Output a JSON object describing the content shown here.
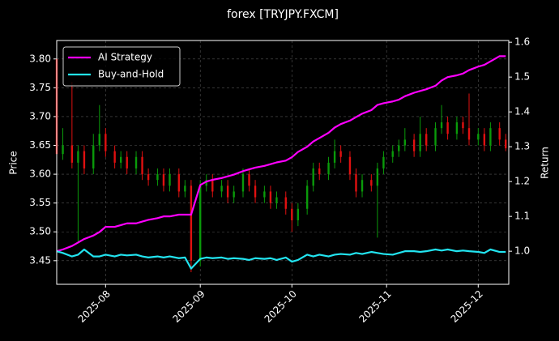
{
  "chart_data": {
    "type": "candlestick",
    "title": "forex [TRYJPY.FXCM]",
    "ylabel": "Price",
    "y2label": "Return",
    "x": [
      "2025-07-16",
      "2025-07-18",
      "2025-07-21",
      "2025-07-23",
      "2025-07-25",
      "2025-07-28",
      "2025-07-30",
      "2025-08-01",
      "2025-08-04",
      "2025-08-06",
      "2025-08-08",
      "2025-08-11",
      "2025-08-13",
      "2025-08-15",
      "2025-08-18",
      "2025-08-20",
      "2025-08-22",
      "2025-08-25",
      "2025-08-27",
      "2025-08-29",
      "2025-09-01",
      "2025-09-03",
      "2025-09-05",
      "2025-09-08",
      "2025-09-10",
      "2025-09-12",
      "2025-09-15",
      "2025-09-17",
      "2025-09-19",
      "2025-09-22",
      "2025-09-24",
      "2025-09-26",
      "2025-09-29",
      "2025-10-01",
      "2025-10-03",
      "2025-10-06",
      "2025-10-08",
      "2025-10-10",
      "2025-10-13",
      "2025-10-15",
      "2025-10-17",
      "2025-10-20",
      "2025-10-22",
      "2025-10-24",
      "2025-10-27",
      "2025-10-29",
      "2025-10-31",
      "2025-11-03",
      "2025-11-05",
      "2025-11-07",
      "2025-11-10",
      "2025-11-12",
      "2025-11-14",
      "2025-11-17",
      "2025-11-19",
      "2025-11-21",
      "2025-11-24",
      "2025-11-26",
      "2025-11-28",
      "2025-12-01",
      "2025-12-03",
      "2025-12-05",
      "2025-12-08",
      "2025-12-10"
    ],
    "open": [
      3.8,
      3.635,
      3.65,
      3.62,
      3.64,
      3.61,
      3.65,
      3.67,
      3.64,
      3.62,
      3.63,
      3.61,
      3.63,
      3.6,
      3.59,
      3.6,
      3.58,
      3.6,
      3.57,
      3.58,
      3.45,
      3.58,
      3.59,
      3.57,
      3.58,
      3.56,
      3.57,
      3.6,
      3.58,
      3.56,
      3.57,
      3.55,
      3.56,
      3.54,
      3.52,
      3.54,
      3.58,
      3.61,
      3.6,
      3.62,
      3.64,
      3.63,
      3.6,
      3.57,
      3.59,
      3.58,
      3.61,
      3.63,
      3.64,
      3.65,
      3.66,
      3.64,
      3.67,
      3.65,
      3.68,
      3.69,
      3.67,
      3.69,
      3.68,
      3.66,
      3.67,
      3.65,
      3.68,
      3.66
    ],
    "high": [
      3.805,
      3.68,
      3.76,
      3.65,
      3.65,
      3.67,
      3.72,
      3.68,
      3.65,
      3.64,
      3.64,
      3.64,
      3.64,
      3.61,
      3.61,
      3.61,
      3.61,
      3.61,
      3.59,
      3.59,
      3.59,
      3.6,
      3.6,
      3.59,
      3.59,
      3.58,
      3.61,
      3.61,
      3.59,
      3.58,
      3.58,
      3.57,
      3.57,
      3.55,
      3.55,
      3.59,
      3.62,
      3.62,
      3.63,
      3.66,
      3.65,
      3.64,
      3.61,
      3.6,
      3.6,
      3.62,
      3.64,
      3.65,
      3.66,
      3.68,
      3.67,
      3.7,
      3.68,
      3.69,
      3.72,
      3.7,
      3.7,
      3.7,
      3.74,
      3.68,
      3.68,
      3.69,
      3.69,
      3.67
    ],
    "low": [
      3.63,
      3.625,
      3.61,
      3.48,
      3.6,
      3.6,
      3.64,
      3.63,
      3.61,
      3.61,
      3.6,
      3.6,
      3.59,
      3.58,
      3.58,
      3.57,
      3.57,
      3.56,
      3.56,
      3.43,
      3.44,
      3.57,
      3.56,
      3.56,
      3.55,
      3.55,
      3.56,
      3.57,
      3.55,
      3.55,
      3.54,
      3.54,
      3.53,
      3.5,
      3.51,
      3.53,
      3.57,
      3.59,
      3.59,
      3.61,
      3.62,
      3.59,
      3.56,
      3.56,
      3.57,
      3.49,
      3.6,
      3.62,
      3.63,
      3.64,
      3.63,
      3.63,
      3.64,
      3.64,
      3.67,
      3.66,
      3.66,
      3.67,
      3.65,
      3.65,
      3.64,
      3.64,
      3.65,
      3.64
    ],
    "close": [
      3.635,
      3.65,
      3.62,
      3.64,
      3.61,
      3.65,
      3.67,
      3.64,
      3.62,
      3.63,
      3.61,
      3.63,
      3.6,
      3.59,
      3.6,
      3.58,
      3.6,
      3.57,
      3.58,
      3.45,
      3.58,
      3.59,
      3.57,
      3.58,
      3.56,
      3.57,
      3.6,
      3.58,
      3.56,
      3.57,
      3.55,
      3.56,
      3.54,
      3.52,
      3.54,
      3.58,
      3.61,
      3.6,
      3.62,
      3.64,
      3.63,
      3.6,
      3.57,
      3.59,
      3.58,
      3.61,
      3.63,
      3.64,
      3.65,
      3.66,
      3.64,
      3.67,
      3.65,
      3.68,
      3.69,
      3.67,
      3.69,
      3.68,
      3.66,
      3.67,
      3.65,
      3.68,
      3.66,
      3.645
    ],
    "up_color": "#0a9a0a",
    "down_color": "#e01010",
    "series": [
      {
        "name": "AI Strategy",
        "color": "#ff00ff",
        "axis": "y2",
        "values": [
          1.0,
          1.005,
          1.015,
          1.025,
          1.035,
          1.045,
          1.055,
          1.07,
          1.07,
          1.075,
          1.08,
          1.08,
          1.085,
          1.09,
          1.095,
          1.1,
          1.1,
          1.105,
          1.105,
          1.105,
          1.19,
          1.2,
          1.205,
          1.21,
          1.215,
          1.22,
          1.23,
          1.235,
          1.24,
          1.245,
          1.25,
          1.255,
          1.26,
          1.27,
          1.285,
          1.3,
          1.315,
          1.325,
          1.34,
          1.355,
          1.365,
          1.375,
          1.385,
          1.395,
          1.405,
          1.42,
          1.425,
          1.43,
          1.435,
          1.445,
          1.455,
          1.46,
          1.465,
          1.475,
          1.49,
          1.5,
          1.505,
          1.51,
          1.52,
          1.53,
          1.535,
          1.545,
          1.56,
          1.56
        ]
      },
      {
        "name": "Buy-and-Hold",
        "color": "#22e4f0",
        "axis": "y2",
        "values": [
          1.0,
          0.995,
          0.985,
          0.99,
          1.005,
          0.985,
          0.985,
          0.99,
          0.985,
          0.99,
          0.988,
          0.99,
          0.985,
          0.982,
          0.985,
          0.982,
          0.985,
          0.98,
          0.982,
          0.95,
          0.978,
          0.982,
          0.98,
          0.982,
          0.978,
          0.98,
          0.978,
          0.975,
          0.98,
          0.978,
          0.98,
          0.975,
          0.982,
          0.97,
          0.975,
          0.99,
          0.985,
          0.99,
          0.985,
          0.99,
          0.992,
          0.99,
          0.995,
          0.992,
          0.998,
          0.995,
          0.992,
          0.99,
          0.995,
          1.0,
          1.0,
          0.998,
          1.0,
          1.005,
          1.002,
          1.005,
          1.0,
          1.002,
          1.0,
          0.998,
          0.995,
          1.005,
          0.998,
          0.998
        ]
      }
    ],
    "xlim": [
      "2025-07-16",
      "2025-12-11"
    ],
    "xticks": [
      {
        "value": "2025-08-01",
        "label": "2025-08"
      },
      {
        "value": "2025-09-01",
        "label": "2025-09"
      },
      {
        "value": "2025-10-01",
        "label": "2025-10"
      },
      {
        "value": "2025-11-01",
        "label": "2025-11"
      },
      {
        "value": "2025-12-01",
        "label": "2025-12"
      }
    ],
    "ylim": [
      3.409,
      3.832
    ],
    "yticks": [
      3.45,
      {
        "value": 3.5,
        "label": "3.50"
      },
      3.55,
      {
        "value": 3.6,
        "label": "3.60"
      },
      3.65,
      {
        "value": 3.7,
        "label": "3.70"
      },
      3.75,
      {
        "value": 3.8,
        "label": "3.80"
      }
    ],
    "y2lim": [
      0.905,
      1.605
    ],
    "y2ticks": [
      {
        "value": 1.0,
        "label": "1.0"
      },
      {
        "value": 1.1,
        "label": "1.1"
      },
      {
        "value": 1.2,
        "label": "1.2"
      },
      {
        "value": 1.3,
        "label": "1.3"
      },
      {
        "value": 1.4,
        "label": "1.4"
      },
      {
        "value": 1.5,
        "label": "1.5"
      },
      {
        "value": 1.6,
        "label": "1.6"
      }
    ],
    "grid": true,
    "legend": "upper left"
  }
}
